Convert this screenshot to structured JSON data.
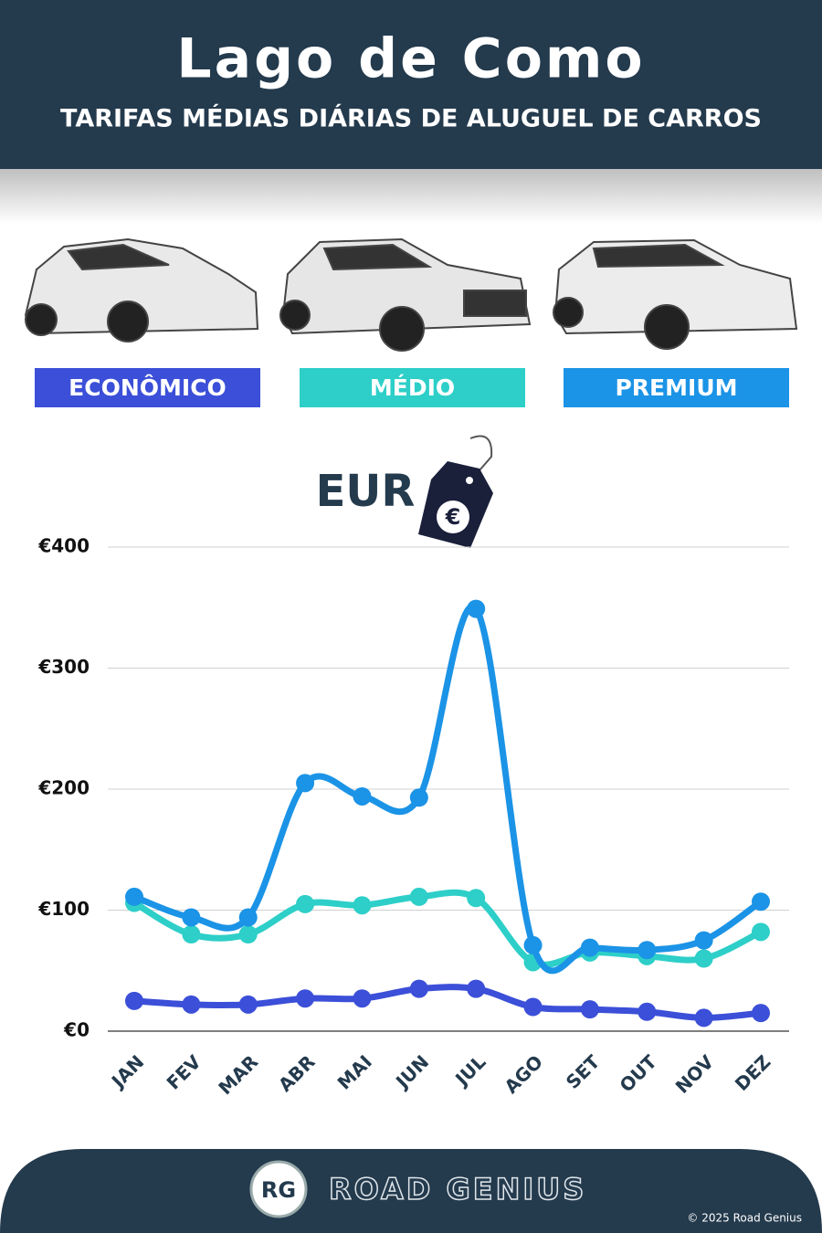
{
  "chart_data": {
    "type": "line",
    "title": "Lago de Como",
    "subtitle": "TARIFAS MÉDIAS DIÁRIAS DE ALUGUEL DE CARROS",
    "annotations": [
      "EUR",
      "€"
    ],
    "categories": [
      "JAN",
      "FEV",
      "MAR",
      "ABR",
      "MAI",
      "JUN",
      "JUL",
      "AGO",
      "SET",
      "OUT",
      "NOV",
      "DEZ"
    ],
    "series": [
      {
        "name": "ECONÔMICO",
        "color": "#3b4fd8",
        "values": [
          25,
          22,
          22,
          27,
          27,
          35,
          35,
          20,
          18,
          16,
          11,
          15
        ]
      },
      {
        "name": "MÉDIO",
        "color": "#2dcfc8",
        "values": [
          106,
          80,
          80,
          105,
          104,
          111,
          110,
          57,
          65,
          62,
          60,
          82
        ]
      },
      {
        "name": "PREMIUM",
        "color": "#1b93e6",
        "values": [
          111,
          94,
          94,
          205,
          194,
          193,
          349,
          71,
          69,
          67,
          75,
          107
        ]
      }
    ],
    "ylim": [
      0,
      400
    ],
    "yticks": [
      {
        "value": 0,
        "label": "€0"
      },
      {
        "value": 100,
        "label": "€100"
      },
      {
        "value": 200,
        "label": "€200"
      },
      {
        "value": 300,
        "label": "€300"
      },
      {
        "value": 400,
        "label": "€400"
      }
    ],
    "grid": true
  },
  "footer": {
    "logo_mark": "RG",
    "brand": "ROAD GENIUS",
    "copyright": "© 2025 Road Genius"
  }
}
